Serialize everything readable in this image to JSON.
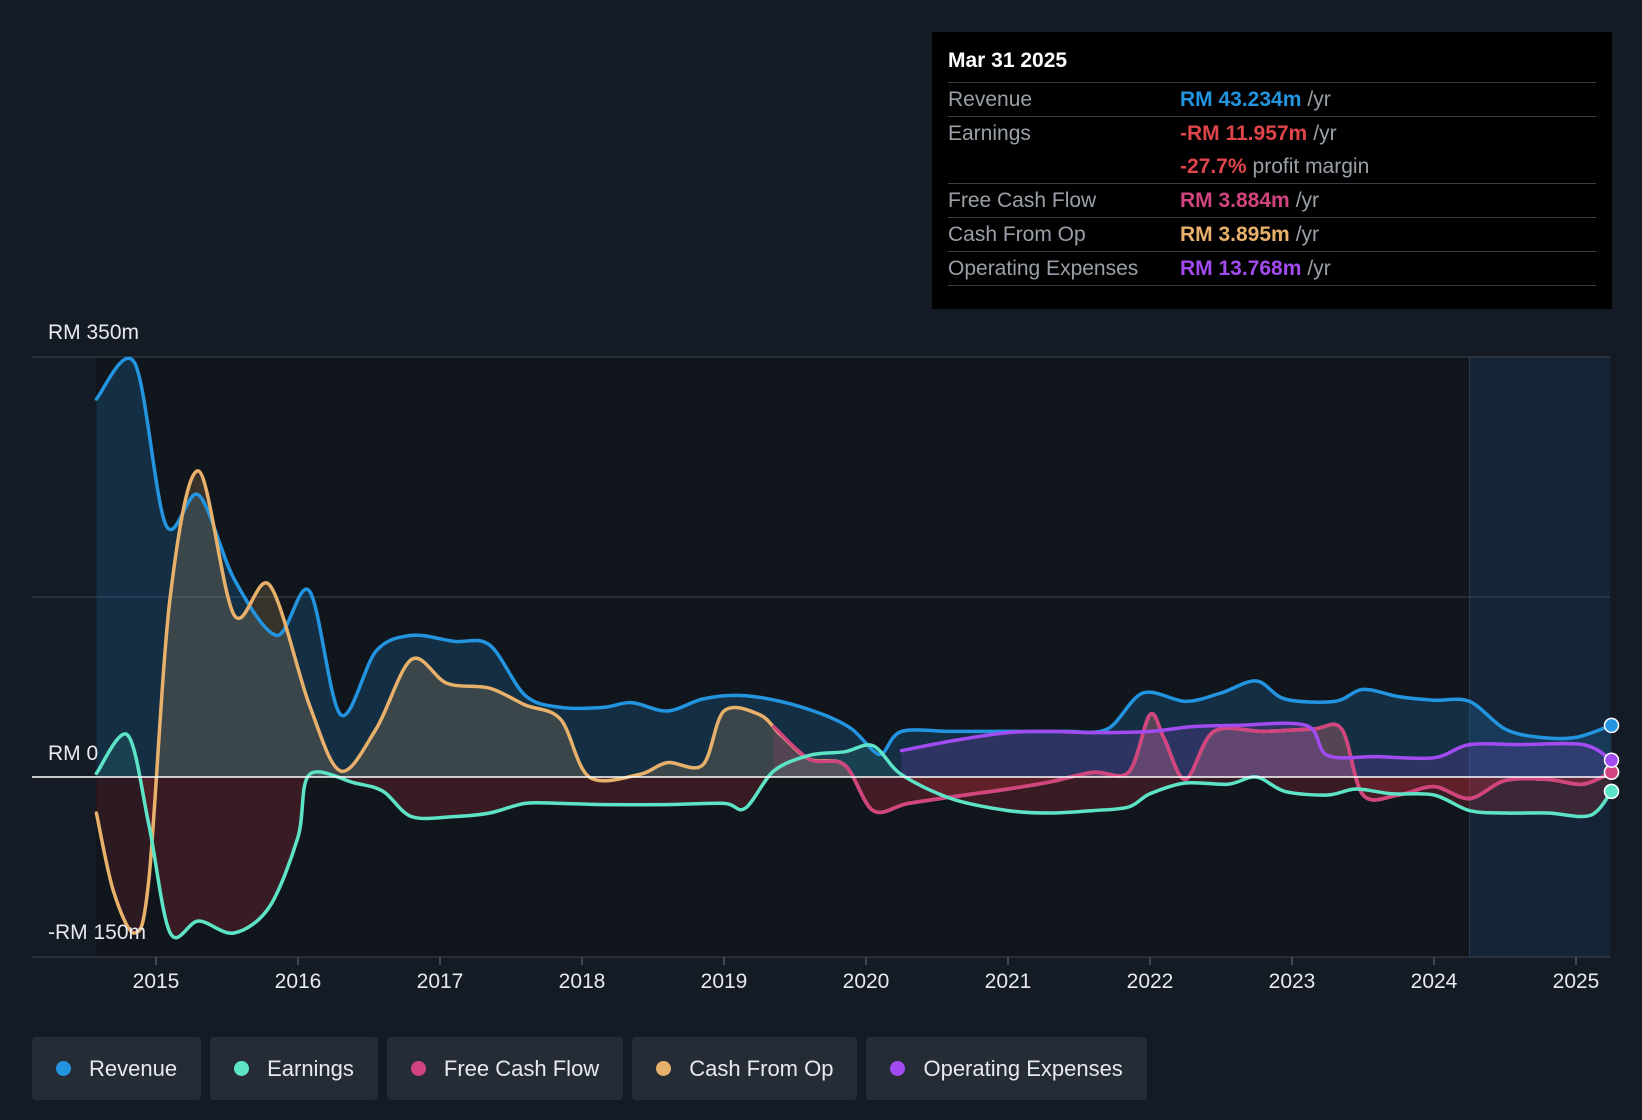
{
  "chart_data": {
    "type": "line",
    "currency": "RM",
    "y_axis": {
      "top_label": "RM 350m",
      "zero_label": "RM 0",
      "bottom_label": "-RM 150m",
      "ylim": [
        -150,
        350
      ]
    },
    "x_ticks": [
      "2015",
      "2016",
      "2017",
      "2018",
      "2019",
      "2020",
      "2021",
      "2022",
      "2023",
      "2024",
      "2025"
    ],
    "xlim": [
      2014.58,
      2025.25
    ],
    "forecast_start": 2024.25,
    "series": [
      {
        "name": "Revenue",
        "color": "#2394df",
        "fill": true,
        "points": [
          [
            2014.58,
            315
          ],
          [
            2014.85,
            345
          ],
          [
            2015.07,
            210
          ],
          [
            2015.3,
            235
          ],
          [
            2015.55,
            165
          ],
          [
            2015.85,
            118
          ],
          [
            2016.08,
            155
          ],
          [
            2016.3,
            52
          ],
          [
            2016.55,
            105
          ],
          [
            2016.8,
            118
          ],
          [
            2017.1,
            113
          ],
          [
            2017.35,
            110
          ],
          [
            2017.6,
            68
          ],
          [
            2017.85,
            58
          ],
          [
            2018.15,
            58
          ],
          [
            2018.35,
            62
          ],
          [
            2018.6,
            55
          ],
          [
            2018.85,
            65
          ],
          [
            2019.1,
            68
          ],
          [
            2019.4,
            63
          ],
          [
            2019.7,
            52
          ],
          [
            2019.9,
            40
          ],
          [
            2020.05,
            22
          ],
          [
            2020.12,
            20
          ],
          [
            2020.25,
            38
          ],
          [
            2020.6,
            38
          ],
          [
            2021.0,
            38
          ],
          [
            2021.4,
            38
          ],
          [
            2021.7,
            40
          ],
          [
            2021.95,
            70
          ],
          [
            2022.25,
            63
          ],
          [
            2022.5,
            70
          ],
          [
            2022.75,
            80
          ],
          [
            2022.95,
            65
          ],
          [
            2023.3,
            63
          ],
          [
            2023.5,
            73
          ],
          [
            2023.75,
            67
          ],
          [
            2024.0,
            64
          ],
          [
            2024.25,
            63
          ],
          [
            2024.5,
            40
          ],
          [
            2024.75,
            33
          ],
          [
            2025.0,
            33
          ],
          [
            2025.25,
            43
          ]
        ]
      },
      {
        "name": "Earnings",
        "color": "#5de4c7",
        "fill": true,
        "points": [
          [
            2014.58,
            3
          ],
          [
            2014.8,
            35
          ],
          [
            2014.95,
            -40
          ],
          [
            2015.1,
            -130
          ],
          [
            2015.3,
            -120
          ],
          [
            2015.55,
            -130
          ],
          [
            2015.8,
            -108
          ],
          [
            2016.0,
            -50
          ],
          [
            2016.08,
            2
          ],
          [
            2016.4,
            -5
          ],
          [
            2016.6,
            -12
          ],
          [
            2016.8,
            -33
          ],
          [
            2017.1,
            -33
          ],
          [
            2017.35,
            -30
          ],
          [
            2017.6,
            -22
          ],
          [
            2017.85,
            -22
          ],
          [
            2018.15,
            -23
          ],
          [
            2018.6,
            -23
          ],
          [
            2019.0,
            -22
          ],
          [
            2019.15,
            -26
          ],
          [
            2019.35,
            5
          ],
          [
            2019.6,
            18
          ],
          [
            2019.85,
            21
          ],
          [
            2020.05,
            26
          ],
          [
            2020.25,
            2
          ],
          [
            2020.6,
            -18
          ],
          [
            2021.0,
            -28
          ],
          [
            2021.3,
            -30
          ],
          [
            2021.6,
            -28
          ],
          [
            2021.85,
            -25
          ],
          [
            2022.0,
            -14
          ],
          [
            2022.25,
            -5
          ],
          [
            2022.55,
            -6
          ],
          [
            2022.75,
            0
          ],
          [
            2022.95,
            -12
          ],
          [
            2023.25,
            -15
          ],
          [
            2023.45,
            -10
          ],
          [
            2023.7,
            -14
          ],
          [
            2024.0,
            -15
          ],
          [
            2024.25,
            -28
          ],
          [
            2024.5,
            -30
          ],
          [
            2024.8,
            -30
          ],
          [
            2025.1,
            -32
          ],
          [
            2025.25,
            -12
          ]
        ]
      },
      {
        "name": "Free Cash Flow",
        "color": "#d2447f",
        "fill": true,
        "points": [
          [
            2019.35,
            42
          ],
          [
            2019.6,
            15
          ],
          [
            2019.85,
            10
          ],
          [
            2020.05,
            -28
          ],
          [
            2020.3,
            -22
          ],
          [
            2020.7,
            -15
          ],
          [
            2021.0,
            -10
          ],
          [
            2021.3,
            -4
          ],
          [
            2021.6,
            4
          ],
          [
            2021.85,
            4
          ],
          [
            2022.0,
            52
          ],
          [
            2022.1,
            32
          ],
          [
            2022.25,
            -2
          ],
          [
            2022.45,
            38
          ],
          [
            2022.8,
            38
          ],
          [
            2023.15,
            40
          ],
          [
            2023.35,
            40
          ],
          [
            2023.5,
            -15
          ],
          [
            2023.75,
            -15
          ],
          [
            2024.0,
            -8
          ],
          [
            2024.25,
            -18
          ],
          [
            2024.5,
            -3
          ],
          [
            2024.8,
            -2
          ],
          [
            2025.05,
            -6
          ],
          [
            2025.25,
            4
          ]
        ]
      },
      {
        "name": "Cash From Op",
        "color": "#e8b16b",
        "fill": true,
        "points": [
          [
            2014.58,
            -30
          ],
          [
            2014.7,
            -95
          ],
          [
            2014.85,
            -130
          ],
          [
            2014.95,
            -85
          ],
          [
            2015.1,
            150
          ],
          [
            2015.3,
            255
          ],
          [
            2015.55,
            135
          ],
          [
            2015.8,
            160
          ],
          [
            2016.08,
            60
          ],
          [
            2016.3,
            5
          ],
          [
            2016.55,
            40
          ],
          [
            2016.8,
            98
          ],
          [
            2017.05,
            78
          ],
          [
            2017.35,
            74
          ],
          [
            2017.6,
            60
          ],
          [
            2017.85,
            48
          ],
          [
            2018.05,
            0
          ],
          [
            2018.4,
            2
          ],
          [
            2018.6,
            12
          ],
          [
            2018.85,
            10
          ],
          [
            2019.0,
            55
          ],
          [
            2019.25,
            52
          ],
          [
            2019.4,
            35
          ],
          [
            2019.6,
            15
          ],
          [
            2019.85,
            10
          ],
          [
            2020.05,
            -28
          ],
          [
            2020.3,
            -22
          ],
          [
            2020.7,
            -15
          ],
          [
            2021.0,
            -10
          ],
          [
            2021.3,
            -4
          ],
          [
            2021.6,
            4
          ],
          [
            2021.85,
            4
          ],
          [
            2022.0,
            52
          ],
          [
            2022.1,
            32
          ],
          [
            2022.25,
            -2
          ],
          [
            2022.45,
            38
          ],
          [
            2022.8,
            38
          ],
          [
            2023.15,
            40
          ],
          [
            2023.35,
            40
          ],
          [
            2023.5,
            -15
          ],
          [
            2023.75,
            -15
          ],
          [
            2024.0,
            -8
          ],
          [
            2024.25,
            -18
          ],
          [
            2024.5,
            -3
          ],
          [
            2024.8,
            -2
          ],
          [
            2025.05,
            -6
          ],
          [
            2025.25,
            4
          ]
        ]
      },
      {
        "name": "Operating Expenses",
        "color": "#a24bf1",
        "fill": true,
        "points": [
          [
            2020.25,
            22
          ],
          [
            2020.6,
            30
          ],
          [
            2021.0,
            37
          ],
          [
            2021.3,
            38
          ],
          [
            2021.6,
            37
          ],
          [
            2022.0,
            38
          ],
          [
            2022.3,
            42
          ],
          [
            2022.6,
            43
          ],
          [
            2023.1,
            43
          ],
          [
            2023.25,
            18
          ],
          [
            2023.6,
            17
          ],
          [
            2024.0,
            16
          ],
          [
            2024.25,
            27
          ],
          [
            2024.6,
            27
          ],
          [
            2025.05,
            27
          ],
          [
            2025.25,
            14
          ]
        ]
      }
    ]
  },
  "tooltip": {
    "date": "Mar 31 2025",
    "rows": [
      {
        "label": "Revenue",
        "value": "RM 43.234m",
        "unit": "/yr",
        "color": "#2394df"
      },
      {
        "label": "Earnings",
        "value": "-RM 11.957m",
        "unit": "/yr",
        "color": "#e0454b"
      },
      {
        "label": "",
        "value": "-27.7%",
        "unit": "profit margin",
        "color": "#e0454b"
      },
      {
        "label": "Free Cash Flow",
        "value": "RM 3.884m",
        "unit": "/yr",
        "color": "#d2447f"
      },
      {
        "label": "Cash From Op",
        "value": "RM 3.895m",
        "unit": "/yr",
        "color": "#e8b16b"
      },
      {
        "label": "Operating Expenses",
        "value": "RM 13.768m",
        "unit": "/yr",
        "color": "#a24bf1"
      }
    ]
  },
  "legend": [
    {
      "label": "Revenue",
      "color": "#2394df"
    },
    {
      "label": "Earnings",
      "color": "#5de4c7"
    },
    {
      "label": "Free Cash Flow",
      "color": "#d2447f"
    },
    {
      "label": "Cash From Op",
      "color": "#e8b16b"
    },
    {
      "label": "Operating Expenses",
      "color": "#a24bf1"
    }
  ]
}
